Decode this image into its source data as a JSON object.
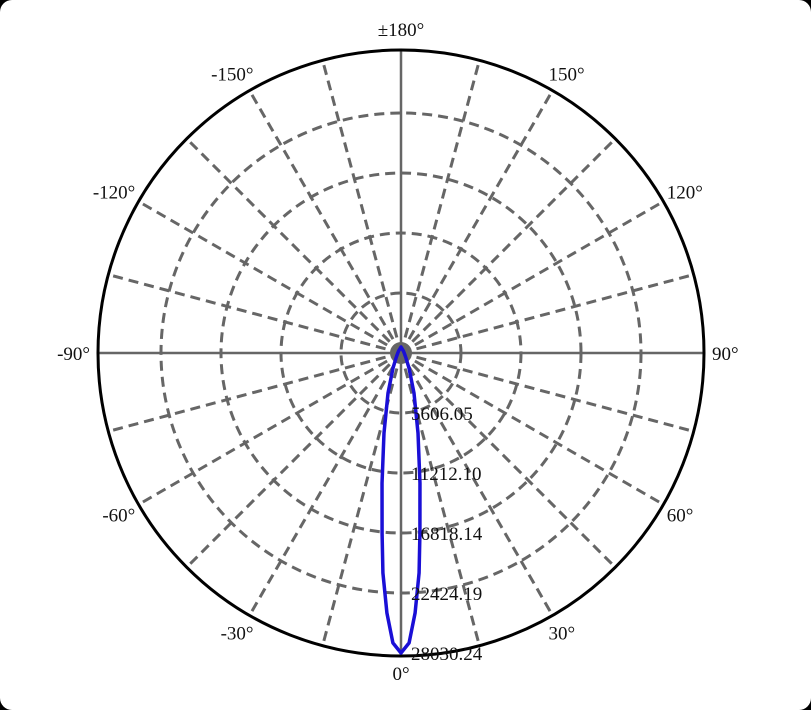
{
  "chart_data": {
    "type": "polar-line",
    "angle_labels": [
      {
        "angle": 180,
        "label": "±180°"
      },
      {
        "angle": 150,
        "label": "150°"
      },
      {
        "angle": 120,
        "label": "120°"
      },
      {
        "angle": 90,
        "label": "90°"
      },
      {
        "angle": 60,
        "label": "60°"
      },
      {
        "angle": 30,
        "label": "30°"
      },
      {
        "angle": 0,
        "label": "0°"
      },
      {
        "angle": -30,
        "label": "-30°"
      },
      {
        "angle": -60,
        "label": "-60°"
      },
      {
        "angle": -90,
        "label": "-90°"
      },
      {
        "angle": -120,
        "label": "-120°"
      },
      {
        "angle": -150,
        "label": "-150°"
      }
    ],
    "radial_ticks": [
      "5606.05",
      "11212.10",
      "16818.14",
      "22424.19",
      "28030.24"
    ],
    "radial_tick_values": [
      5606.05,
      11212.1,
      16818.14,
      22424.19,
      28030.24
    ],
    "rmax": 28030.24,
    "angular_grid_step": 15,
    "grid": true,
    "series": [
      {
        "color": "#1a0fd6",
        "angles": [
          0,
          1.6,
          3.1,
          4.7,
          6.0,
          8.3,
          12,
          18,
          28,
          45,
          90,
          135,
          180
        ],
        "values": [
          28030.24,
          27097,
          24330,
          20620,
          16912,
          12277,
          7643,
          3925,
          1588,
          654,
          300,
          300,
          560
        ]
      }
    ]
  }
}
